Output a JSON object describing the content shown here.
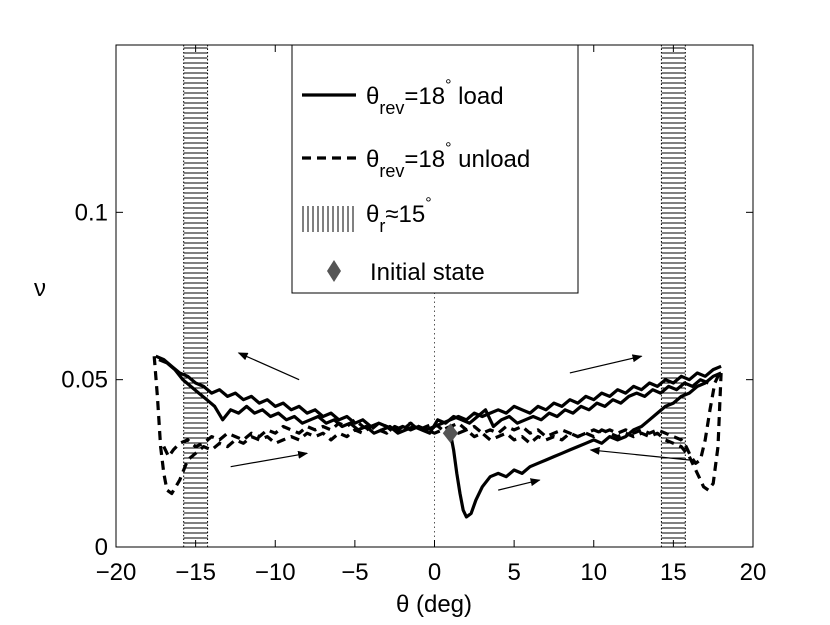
{
  "chart_data": {
    "type": "line",
    "xlabel": "θ (deg)",
    "ylabel": "ν",
    "xlim": [
      -20,
      20
    ],
    "ylim": [
      0,
      0.15
    ],
    "xticks": [
      -20,
      -15,
      -10,
      -5,
      0,
      5,
      10,
      15,
      20
    ],
    "xtick_labels": [
      "−20",
      "−15",
      "−10",
      "−5",
      "0",
      "5",
      "10",
      "15",
      "20"
    ],
    "yticks": [
      0,
      0.05,
      0.1
    ],
    "ytick_labels": [
      "0",
      "0.05",
      "0.1"
    ],
    "repose_band": {
      "center_abs": 15,
      "half_width": 0.75
    },
    "legend": {
      "position": "top-center",
      "entries": [
        {
          "style": "solid",
          "symbol": "θ",
          "sub": "rev",
          "text": "=18",
          "sup": "°",
          "tail": " load"
        },
        {
          "style": "dashed",
          "symbol": "θ",
          "sub": "rev",
          "text": "=18",
          "sup": "°",
          "tail": " unload"
        },
        {
          "style": "hatched",
          "symbol": "θ",
          "sub": "r",
          "text": "≈15",
          "sup": "°",
          "tail": ""
        },
        {
          "style": "diamond",
          "text": "Initial state"
        }
      ]
    },
    "initial_state": {
      "x": 1.0,
      "y": 0.034
    },
    "series": [
      {
        "name": "load initial",
        "style": "solid",
        "x": [
          1.0,
          1.2,
          1.4,
          1.6,
          1.8,
          2.0,
          2.3,
          2.6,
          3.0,
          3.5,
          4.0,
          4.5,
          5.0,
          5.5,
          6.0,
          6.5,
          7.0,
          7.5,
          8.0,
          8.5,
          9.0,
          9.5,
          10.0,
          10.5,
          11.0,
          11.5,
          12.0,
          12.5,
          13.0,
          13.5,
          14.0,
          14.5,
          15.0,
          15.5,
          16.0,
          16.5,
          17.0,
          17.5,
          18.0
        ],
        "y": [
          0.034,
          0.029,
          0.022,
          0.016,
          0.011,
          0.009,
          0.01,
          0.014,
          0.018,
          0.021,
          0.022,
          0.021,
          0.023,
          0.022,
          0.024,
          0.025,
          0.026,
          0.027,
          0.028,
          0.029,
          0.03,
          0.031,
          0.032,
          0.031,
          0.033,
          0.032,
          0.033,
          0.035,
          0.036,
          0.038,
          0.04,
          0.042,
          0.043,
          0.045,
          0.046,
          0.048,
          0.049,
          0.051,
          0.052
        ]
      },
      {
        "name": "load 1",
        "style": "solid",
        "x": [
          -17.5,
          -17.0,
          -16.5,
          -16.0,
          -15.5,
          -15.0,
          -14.5,
          -14.0,
          -13.5,
          -13.0,
          -12.5,
          -12.0,
          -11.5,
          -11.0,
          -10.5,
          -10.0,
          -9.5,
          -9.0,
          -8.5,
          -8.0,
          -7.5,
          -7.0,
          -6.5,
          -6.0,
          -5.5,
          -5.0,
          -4.5,
          -4.0,
          -3.5,
          -3.0,
          -2.5,
          -2.0,
          -1.5,
          -1.0,
          -0.5,
          0.0,
          0.5,
          1.0,
          1.5,
          2.0,
          2.5,
          3.0,
          3.5,
          4.0,
          4.5,
          5.0,
          5.5,
          6.0,
          6.5,
          7.0,
          7.5,
          8.0,
          8.5,
          9.0,
          9.5,
          10.0,
          10.5,
          11.0,
          11.5,
          12.0,
          12.5,
          13.0,
          13.5,
          14.0,
          14.5,
          15.0,
          15.5,
          16.0,
          16.5,
          17.0,
          17.5,
          18.0
        ],
        "y": [
          0.057,
          0.056,
          0.054,
          0.052,
          0.051,
          0.049,
          0.048,
          0.046,
          0.047,
          0.045,
          0.046,
          0.044,
          0.045,
          0.043,
          0.044,
          0.042,
          0.043,
          0.041,
          0.042,
          0.04,
          0.041,
          0.039,
          0.04,
          0.038,
          0.039,
          0.037,
          0.038,
          0.036,
          0.037,
          0.036,
          0.035,
          0.036,
          0.035,
          0.036,
          0.035,
          0.036,
          0.037,
          0.038,
          0.039,
          0.038,
          0.04,
          0.039,
          0.04,
          0.041,
          0.04,
          0.042,
          0.041,
          0.04,
          0.042,
          0.041,
          0.043,
          0.042,
          0.044,
          0.043,
          0.045,
          0.044,
          0.046,
          0.045,
          0.047,
          0.046,
          0.048,
          0.047,
          0.049,
          0.048,
          0.05,
          0.049,
          0.051,
          0.05,
          0.052,
          0.051,
          0.053,
          0.054
        ]
      },
      {
        "name": "load 2",
        "style": "solid",
        "x": [
          -17.3,
          -16.8,
          -16.3,
          -15.8,
          -15.3,
          -14.8,
          -14.3,
          -13.8,
          -13.3,
          -12.8,
          -12.3,
          -11.8,
          -11.3,
          -10.8,
          -10.3,
          -9.8,
          -9.3,
          -8.8,
          -8.3,
          -7.8,
          -7.3,
          -6.8,
          -6.3,
          -5.8,
          -5.3,
          -4.8,
          -4.3,
          -3.8,
          -3.3,
          -2.8,
          -2.3,
          -1.8,
          -1.3,
          -0.8,
          -0.3,
          0.2,
          0.7,
          1.2,
          1.7,
          2.2,
          2.7,
          3.2,
          3.7,
          4.2,
          4.7,
          5.2,
          5.7,
          6.2,
          6.7,
          7.2,
          7.7,
          8.2,
          8.7,
          9.2,
          9.7,
          10.2,
          10.7,
          11.2,
          11.7,
          12.2,
          12.7,
          13.2,
          13.7,
          14.2,
          14.7,
          15.2,
          15.7,
          16.2,
          16.7,
          17.2
        ],
        "y": [
          0.056,
          0.055,
          0.053,
          0.05,
          0.048,
          0.046,
          0.044,
          0.042,
          0.038,
          0.041,
          0.04,
          0.042,
          0.04,
          0.041,
          0.039,
          0.04,
          0.038,
          0.039,
          0.037,
          0.038,
          0.039,
          0.037,
          0.038,
          0.036,
          0.037,
          0.035,
          0.036,
          0.034,
          0.035,
          0.036,
          0.034,
          0.035,
          0.036,
          0.035,
          0.034,
          0.038,
          0.037,
          0.039,
          0.038,
          0.037,
          0.039,
          0.041,
          0.036,
          0.038,
          0.039,
          0.037,
          0.038,
          0.039,
          0.038,
          0.04,
          0.039,
          0.041,
          0.04,
          0.042,
          0.041,
          0.043,
          0.042,
          0.044,
          0.043,
          0.045,
          0.046,
          0.045,
          0.047,
          0.046,
          0.048,
          0.047,
          0.049,
          0.048,
          0.05,
          0.049
        ]
      },
      {
        "name": "unload 1",
        "style": "dashed",
        "x": [
          -17.6,
          -17.4,
          -17.2,
          -17.0,
          -16.8,
          -16.5,
          -16.0,
          -15.5,
          -15.0,
          -14.5,
          -14.0,
          -13.5,
          -13.0,
          -12.5,
          -12.0,
          -11.5,
          -11.0,
          -10.5,
          -10.0,
          -9.5,
          -9.0,
          -8.5,
          -8.0,
          -7.5,
          -7.0,
          -6.5,
          -6.0,
          -5.5,
          -5.0,
          -4.5,
          -4.0,
          -3.5,
          -3.0,
          -2.5,
          -2.0,
          -1.5,
          -1.0,
          -0.5,
          0.0,
          0.5,
          1.0,
          1.5,
          2.0,
          2.5,
          3.0,
          3.5,
          4.0,
          4.5,
          5.0,
          5.5,
          6.0,
          6.5,
          7.0,
          7.5,
          8.0,
          8.5,
          9.0,
          9.5,
          10.0,
          10.5,
          11.0,
          11.5,
          12.0,
          12.5,
          13.0,
          13.5,
          14.0,
          14.5,
          15.0,
          15.5,
          16.0,
          16.3,
          16.6,
          16.9,
          17.2,
          17.5,
          17.8,
          18.0
        ],
        "y": [
          0.057,
          0.045,
          0.03,
          0.022,
          0.017,
          0.016,
          0.02,
          0.026,
          0.028,
          0.03,
          0.029,
          0.031,
          0.03,
          0.032,
          0.031,
          0.033,
          0.032,
          0.033,
          0.031,
          0.032,
          0.033,
          0.032,
          0.034,
          0.033,
          0.034,
          0.032,
          0.034,
          0.033,
          0.035,
          0.034,
          0.036,
          0.035,
          0.034,
          0.036,
          0.035,
          0.037,
          0.036,
          0.035,
          0.034,
          0.035,
          0.036,
          0.034,
          0.035,
          0.033,
          0.034,
          0.032,
          0.033,
          0.034,
          0.032,
          0.033,
          0.031,
          0.033,
          0.032,
          0.033,
          0.032,
          0.034,
          0.033,
          0.034,
          0.033,
          0.035,
          0.034,
          0.033,
          0.034,
          0.033,
          0.034,
          0.033,
          0.034,
          0.032,
          0.031,
          0.03,
          0.027,
          0.024,
          0.021,
          0.018,
          0.017,
          0.019,
          0.03,
          0.052
        ]
      },
      {
        "name": "unload 2",
        "style": "dashed",
        "x": [
          -17.0,
          -16.7,
          -16.4,
          -16.0,
          -15.5,
          -15.0,
          -14.5,
          -14.0,
          -13.5,
          -13.0,
          -12.5,
          -12.0,
          -11.5,
          -11.0,
          -10.5,
          -10.0,
          -9.5,
          -9.0,
          -8.5,
          -8.0,
          -7.5,
          -7.0,
          -6.5,
          -6.0,
          -5.5,
          -5.0,
          -4.5,
          -4.0,
          -3.5,
          -3.0,
          -2.5,
          -2.0,
          -1.5,
          -1.0,
          -0.5,
          0.0,
          0.5,
          1.0,
          1.5,
          2.0,
          2.5,
          3.0,
          3.5,
          4.0,
          4.5,
          5.0,
          5.5,
          6.0,
          6.5,
          7.0,
          7.5,
          8.0,
          8.5,
          9.0,
          9.5,
          10.0,
          10.5,
          11.0,
          11.5,
          12.0,
          12.5,
          13.0,
          13.5,
          14.0,
          14.5,
          15.0,
          15.5,
          15.8,
          16.1,
          16.4,
          16.7,
          17.0,
          17.3,
          17.6,
          17.9
        ],
        "y": [
          0.03,
          0.027,
          0.029,
          0.031,
          0.032,
          0.03,
          0.031,
          0.033,
          0.032,
          0.034,
          0.033,
          0.032,
          0.034,
          0.033,
          0.035,
          0.034,
          0.036,
          0.035,
          0.034,
          0.036,
          0.035,
          0.036,
          0.035,
          0.037,
          0.036,
          0.038,
          0.036,
          0.035,
          0.037,
          0.036,
          0.034,
          0.036,
          0.037,
          0.035,
          0.036,
          0.037,
          0.035,
          0.036,
          0.037,
          0.035,
          0.036,
          0.034,
          0.035,
          0.034,
          0.036,
          0.035,
          0.036,
          0.034,
          0.035,
          0.033,
          0.034,
          0.035,
          0.034,
          0.033,
          0.034,
          0.035,
          0.034,
          0.035,
          0.034,
          0.035,
          0.034,
          0.035,
          0.034,
          0.035,
          0.034,
          0.033,
          0.032,
          0.03,
          0.027,
          0.025,
          0.026,
          0.032,
          0.041,
          0.049,
          0.052
        ]
      }
    ],
    "arrows": [
      {
        "from": [
          -8.5,
          0.05
        ],
        "to": [
          -12.3,
          0.058
        ]
      },
      {
        "from": [
          -12.8,
          0.024
        ],
        "to": [
          -8.0,
          0.028
        ]
      },
      {
        "from": [
          8.5,
          0.052
        ],
        "to": [
          13.0,
          0.057
        ]
      },
      {
        "from": [
          4.0,
          0.017
        ],
        "to": [
          6.6,
          0.02
        ]
      },
      {
        "from": [
          16.0,
          0.026
        ],
        "to": [
          9.8,
          0.029
        ]
      }
    ]
  }
}
